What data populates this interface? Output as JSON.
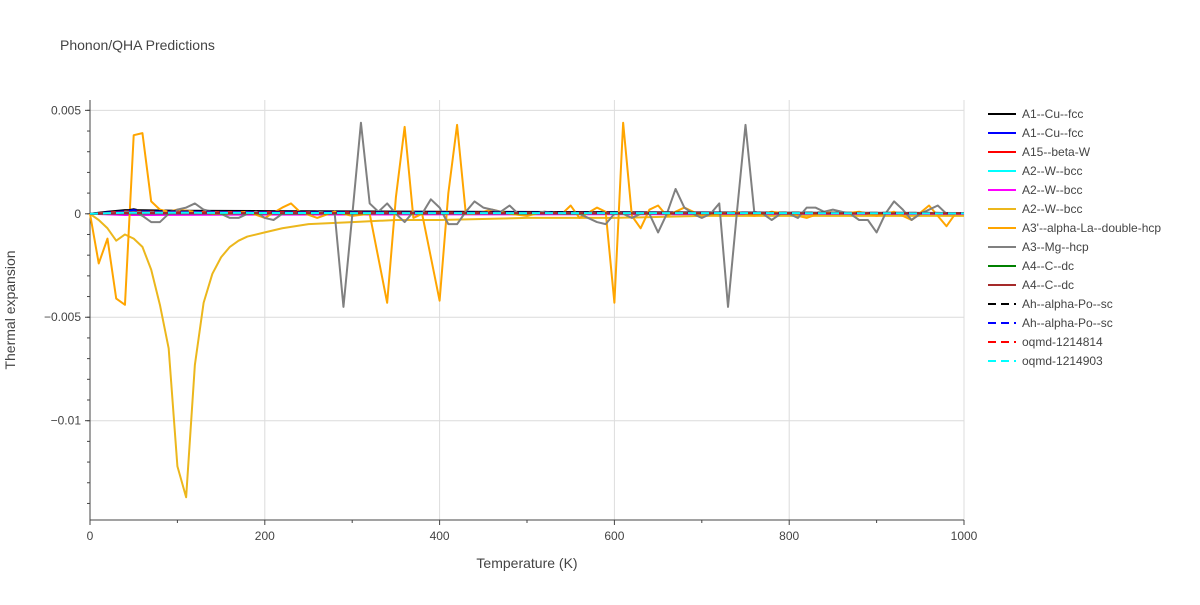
{
  "chart_data": {
    "type": "line",
    "title": "Phonon/QHA Predictions",
    "xlabel": "Temperature (K)",
    "ylabel": "Thermal expansion",
    "xlim": [
      0,
      1000
    ],
    "ylim": [
      -0.0148,
      0.0055
    ],
    "x_ticks": [
      {
        "value": 0,
        "label": "0"
      },
      {
        "value": 200,
        "label": "200"
      },
      {
        "value": 400,
        "label": "400"
      },
      {
        "value": 600,
        "label": "600"
      },
      {
        "value": 800,
        "label": "800"
      },
      {
        "value": 1000,
        "label": "1000"
      }
    ],
    "y_ticks": [
      {
        "value": 0.005,
        "label": "0.005"
      },
      {
        "value": 0,
        "label": "0"
      },
      {
        "value": -0.005,
        "label": "−0.005"
      },
      {
        "value": -0.01,
        "label": "−0.01"
      }
    ],
    "grid": true,
    "legend_position": "right",
    "series": [
      {
        "name": "A1--Cu--fcc",
        "color": "#000000",
        "dash": "solid",
        "x": [
          0,
          20,
          40,
          60,
          100,
          200,
          400,
          600,
          800,
          1000
        ],
        "y": [
          0,
          0.0001,
          0.00018,
          0.00017,
          0.00015,
          0.00013,
          0.0001,
          8e-05,
          5e-05,
          4e-05
        ]
      },
      {
        "name": "A1--Cu--fcc",
        "color": "#0000ff",
        "dash": "solid",
        "x": [
          0,
          20,
          40,
          60,
          100,
          200,
          400,
          600,
          800,
          1000
        ],
        "y": [
          0,
          5e-05,
          0.00012,
          0.0001,
          9e-05,
          8e-05,
          6e-05,
          5e-05,
          4e-05,
          3e-05
        ]
      },
      {
        "name": "A15--beta-W",
        "color": "#ff0000",
        "dash": "solid",
        "x": [
          0,
          20,
          40,
          60,
          100,
          200,
          400,
          600,
          800,
          1000
        ],
        "y": [
          0,
          6e-05,
          0.00012,
          0.00011,
          0.0001,
          8e-05,
          6e-05,
          5e-05,
          4e-05,
          3e-05
        ]
      },
      {
        "name": "A2--W--bcc",
        "color": "#00ffff",
        "dash": "solid",
        "x": [
          0,
          20,
          40,
          60,
          100,
          200,
          400,
          600,
          800,
          1000
        ],
        "y": [
          0,
          3e-05,
          6e-05,
          6e-05,
          5e-05,
          4e-05,
          3e-05,
          3e-05,
          2e-05,
          2e-05
        ]
      },
      {
        "name": "A2--W--bcc",
        "color": "#ff00ff",
        "dash": "solid",
        "x": [
          0,
          20,
          40,
          60,
          100,
          200,
          400,
          600,
          800,
          1000
        ],
        "y": [
          0,
          -3e-05,
          -6e-05,
          -6e-05,
          -5e-05,
          -4e-05,
          -3e-05,
          -2e-05,
          -2e-05,
          -1e-05
        ]
      },
      {
        "name": "A2--W--bcc",
        "color": "#ecb71c",
        "dash": "solid",
        "x": [
          0,
          10,
          20,
          30,
          40,
          50,
          60,
          70,
          80,
          90,
          100,
          110,
          120,
          130,
          140,
          150,
          160,
          170,
          180,
          200,
          220,
          250,
          300,
          350,
          400,
          500,
          600,
          700,
          800,
          900,
          1000
        ],
        "y": [
          0,
          -0.0003,
          -0.0007,
          -0.0013,
          -0.001,
          -0.0012,
          -0.0016,
          -0.0027,
          -0.0044,
          -0.0065,
          -0.0122,
          -0.0137,
          -0.0073,
          -0.0043,
          -0.0029,
          -0.0021,
          -0.0016,
          -0.0013,
          -0.0011,
          -0.0009,
          -0.0007,
          -0.0005,
          -0.0004,
          -0.0003,
          -0.0003,
          -0.0002,
          -0.0002,
          -0.0001,
          -0.0001,
          -0.0001,
          -0.0001
        ]
      },
      {
        "name": "A3'--alpha-La--double-hcp",
        "color": "#ffa500",
        "dash": "solid",
        "x": [
          0,
          10,
          20,
          30,
          40,
          50,
          60,
          70,
          80,
          90,
          100,
          120,
          140,
          160,
          180,
          200,
          220,
          230,
          240,
          260,
          280,
          300,
          320,
          340,
          350,
          360,
          370,
          380,
          400,
          410,
          420,
          430,
          440,
          460,
          480,
          500,
          520,
          540,
          550,
          560,
          580,
          590,
          600,
          610,
          620,
          630,
          640,
          650,
          660,
          680,
          700,
          720,
          740,
          760,
          780,
          800,
          820,
          840,
          860,
          880,
          900,
          920,
          940,
          960,
          980,
          990
        ],
        "y": [
          0,
          -0.0024,
          -0.0012,
          -0.0041,
          -0.0044,
          0.0038,
          0.0039,
          0.0006,
          0.0002,
          0.0001,
          0.0002,
          0.0001,
          0.0,
          0.0,
          0.0001,
          -0.0002,
          0.0003,
          0.0005,
          0.0001,
          -0.0002,
          0.0001,
          -0.0001,
          0.0,
          -0.0043,
          0.0008,
          0.0042,
          -0.0002,
          0.0,
          -0.0042,
          0.001,
          0.0043,
          0.0,
          0.0,
          0.0002,
          0.0,
          -0.0001,
          0.0001,
          0.0,
          0.0004,
          -0.0002,
          0.0003,
          0.0001,
          -0.0043,
          0.0044,
          -0.0001,
          -0.0007,
          0.0002,
          0.0004,
          -0.0001,
          0.0003,
          -0.0001,
          0.0,
          0.0001,
          -0.0001,
          0.0001,
          0.0,
          -0.0002,
          0.0001,
          0.0,
          0.0001,
          -0.0001,
          0.0001,
          -0.0003,
          0.0004,
          -0.0006,
          0.0
        ]
      },
      {
        "name": "A3--Mg--hcp",
        "color": "#808080",
        "dash": "solid",
        "x": [
          0,
          20,
          40,
          50,
          60,
          70,
          80,
          90,
          100,
          110,
          120,
          130,
          140,
          150,
          160,
          170,
          180,
          190,
          200,
          210,
          220,
          240,
          260,
          280,
          290,
          300,
          310,
          320,
          330,
          340,
          350,
          360,
          370,
          380,
          390,
          400,
          410,
          420,
          430,
          440,
          450,
          460,
          470,
          480,
          490,
          500,
          520,
          540,
          560,
          580,
          590,
          600,
          610,
          620,
          630,
          640,
          650,
          660,
          670,
          680,
          690,
          700,
          710,
          720,
          730,
          740,
          750,
          760,
          770,
          780,
          790,
          800,
          810,
          820,
          830,
          840,
          850,
          860,
          870,
          880,
          890,
          900,
          910,
          920,
          930,
          940,
          950,
          960,
          970,
          980,
          990
        ],
        "y": [
          0,
          0.0,
          0.0001,
          0.0001,
          -0.0001,
          -0.0004,
          -0.0004,
          0.0,
          0.0002,
          0.0003,
          0.0005,
          0.0002,
          0.0001,
          0.0,
          -0.0002,
          -0.0002,
          0.0,
          0.0001,
          -0.0002,
          -0.0003,
          0.0,
          0.0,
          0.0001,
          0.0,
          -0.0045,
          -0.0001,
          0.0044,
          0.0005,
          0.0001,
          0.0005,
          0.0,
          -0.0004,
          0.0001,
          0.0,
          0.0007,
          0.0003,
          -0.0005,
          -0.0005,
          0.0001,
          0.0006,
          0.0003,
          0.0002,
          0.0001,
          0.0004,
          0.0,
          0.0,
          0.0001,
          0.0,
          0.0,
          -0.0004,
          -0.0005,
          0.0,
          0.0,
          -0.0002,
          0.0,
          0.0,
          -0.0009,
          0.0,
          0.0012,
          0.0003,
          0.0,
          -0.0002,
          0.0,
          0.0005,
          -0.0045,
          0.0,
          0.0043,
          0.0001,
          0.0,
          -0.0003,
          0.0,
          0.0,
          -0.0002,
          0.0003,
          0.0003,
          0.0001,
          0.0002,
          0.0001,
          0.0,
          -0.0003,
          -0.0003,
          -0.0009,
          0.0,
          0.0006,
          0.0002,
          -0.0003,
          0.0,
          0.0002,
          0.0004,
          0.0,
          0.0
        ]
      },
      {
        "name": "A4--C--dc",
        "color": "#008000",
        "dash": "solid",
        "x": [
          0,
          20,
          40,
          60,
          100,
          200,
          400,
          600,
          800,
          1000
        ],
        "y": [
          0,
          1e-05,
          2e-05,
          2e-05,
          2e-05,
          2e-05,
          2e-05,
          2e-05,
          2e-05,
          2e-05
        ]
      },
      {
        "name": "A4--C--dc",
        "color": "#a52a2a",
        "dash": "solid",
        "x": [
          0,
          20,
          40,
          60,
          100,
          200,
          400,
          600,
          800,
          1000
        ],
        "y": [
          0,
          2e-05,
          4e-05,
          4e-05,
          4e-05,
          3e-05,
          3e-05,
          3e-05,
          2e-05,
          2e-05
        ]
      },
      {
        "name": "Ah--alpha-Po--sc",
        "color": "#000000",
        "dash": "dash",
        "x": [
          0,
          20,
          40,
          50,
          60,
          100,
          200,
          400,
          600,
          800,
          1000
        ],
        "y": [
          0,
          8e-05,
          0.00015,
          0.00022,
          0.00014,
          0.00012,
          0.0001,
          8e-05,
          6e-05,
          5e-05,
          4e-05
        ]
      },
      {
        "name": "Ah--alpha-Po--sc",
        "color": "#0000ff",
        "dash": "dash",
        "x": [
          0,
          20,
          40,
          50,
          60,
          100,
          200,
          400,
          600,
          800,
          1000
        ],
        "y": [
          0,
          6e-05,
          0.00012,
          0.00018,
          0.00011,
          0.0001,
          8e-05,
          6e-05,
          5e-05,
          4e-05,
          3e-05
        ]
      },
      {
        "name": "oqmd-1214814",
        "color": "#ff0000",
        "dash": "dash",
        "x": [
          0,
          20,
          40,
          60,
          100,
          200,
          400,
          600,
          800,
          1000
        ],
        "y": [
          0,
          4e-05,
          7e-05,
          7e-05,
          6e-05,
          5e-05,
          4e-05,
          4e-05,
          3e-05,
          3e-05
        ]
      },
      {
        "name": "oqmd-1214903",
        "color": "#00ffff",
        "dash": "dash",
        "x": [
          0,
          20,
          40,
          60,
          100,
          200,
          400,
          600,
          800,
          1000
        ],
        "y": [
          0,
          3e-05,
          5e-05,
          5e-05,
          5e-05,
          4e-05,
          3e-05,
          3e-05,
          3e-05,
          2e-05
        ]
      }
    ]
  }
}
